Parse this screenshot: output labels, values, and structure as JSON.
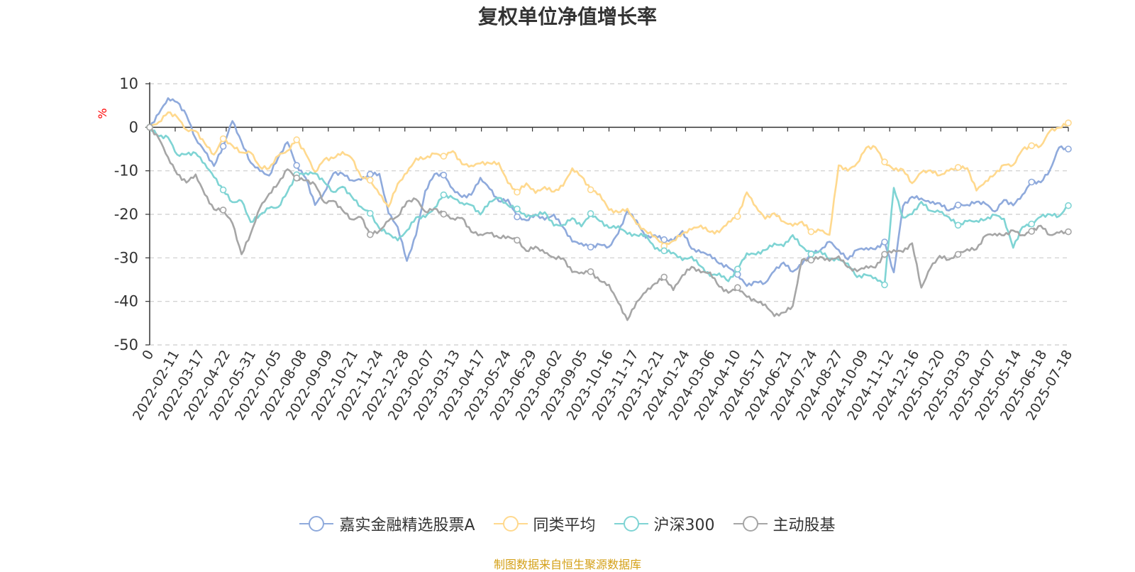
{
  "title": "复权单位净值增长率",
  "source": "制图数据来自恒生聚源数据库",
  "chart_data": {
    "type": "line",
    "ylabel": "%",
    "ylim": [
      -50,
      10
    ],
    "yticks": [
      10,
      0,
      -10,
      -20,
      -30,
      -40,
      -50
    ],
    "x_start_label": "0",
    "x_tick_labels": [
      "2022-02-11",
      "2022-03-17",
      "2022-04-22",
      "2022-05-31",
      "2022-07-05",
      "2022-08-08",
      "2022-09-09",
      "2022-10-21",
      "2022-11-24",
      "2022-12-28",
      "2023-02-07",
      "2023-03-13",
      "2023-04-17",
      "2023-05-24",
      "2023-06-29",
      "2023-08-02",
      "2023-09-05",
      "2023-10-16",
      "2023-11-17",
      "2023-12-21",
      "2024-01-24",
      "2024-03-06",
      "2024-04-10",
      "2024-05-17",
      "2024-06-21",
      "2024-07-24",
      "2024-08-27",
      "2024-10-09",
      "2024-11-12",
      "2024-12-16",
      "2025-01-20",
      "2025-03-03",
      "2025-04-07",
      "2025-05-14",
      "2025-06-18",
      "2025-07-18"
    ],
    "grid": "horizontal-dashed",
    "legend_position": "bottom",
    "series": [
      {
        "name": "嘉实金融精选股票A",
        "color": "#8faadc",
        "values": [
          0,
          3,
          8,
          5,
          2,
          -2,
          -6,
          -8,
          -4,
          0,
          -3,
          -8,
          -10,
          -10,
          -8,
          -4,
          -8,
          -12,
          -17,
          -15,
          -12,
          -10,
          -12,
          -12,
          -10,
          -12,
          -20,
          -22,
          -31,
          -24,
          -15,
          -12,
          -10,
          -14,
          -16,
          -15,
          -13,
          -14,
          -16,
          -17,
          -20,
          -22,
          -21,
          -20,
          -20,
          -23,
          -26,
          -28,
          -27,
          -26,
          -28,
          -24,
          -20,
          -22,
          -24,
          -25,
          -26,
          -26,
          -25,
          -27,
          -28,
          -30,
          -31,
          -33,
          -34,
          -35,
          -36,
          -36,
          -33,
          -32,
          -32,
          -31,
          -30,
          -28,
          -27,
          -28,
          -29,
          -29,
          -28,
          -28,
          -27,
          -32,
          -18,
          -17,
          -16,
          -18,
          -17,
          -18,
          -19,
          -18,
          -17,
          -18,
          -18,
          -17,
          -19,
          -15,
          -13,
          -12,
          -9,
          -6,
          -5
        ]
      },
      {
        "name": "同类平均",
        "color": "#ffd98e",
        "values": [
          0,
          2,
          4,
          2,
          0,
          -2,
          -4,
          -5,
          -3,
          -4,
          -6,
          -7,
          -8,
          -9,
          -7,
          -5,
          -4,
          -6,
          -9,
          -8,
          -7,
          -6,
          -8,
          -10,
          -12,
          -16,
          -18,
          -14,
          -10,
          -6,
          -8,
          -6,
          -7,
          -6,
          -7,
          -9,
          -9,
          -8,
          -9,
          -12,
          -14,
          -14,
          -15,
          -14,
          -15,
          -12,
          -10,
          -12,
          -14,
          -16,
          -18,
          -19,
          -20,
          -22,
          -24,
          -25,
          -26,
          -27,
          -25,
          -23,
          -23,
          -23,
          -24,
          -23,
          -20,
          -15,
          -18,
          -20,
          -21,
          -22,
          -22,
          -22,
          -23,
          -24,
          -26,
          -8,
          -10,
          -8,
          -4,
          -6,
          -8,
          -9,
          -10,
          -12,
          -11,
          -11,
          -10,
          -10,
          -9,
          -9,
          -16,
          -12,
          -10,
          -9,
          -8,
          -6,
          -5,
          -3,
          -1,
          0,
          1
        ]
      },
      {
        "name": "沪深300",
        "color": "#7fd4d4",
        "values": [
          0,
          -2,
          -3,
          -5,
          -6,
          -7,
          -8,
          -12,
          -14,
          -16,
          -18,
          -22,
          -20,
          -19,
          -17,
          -15,
          -12,
          -10,
          -11,
          -12,
          -14,
          -15,
          -16,
          -18,
          -20,
          -22,
          -25,
          -27,
          -23,
          -21,
          -20,
          -18,
          -17,
          -16,
          -17,
          -18,
          -19,
          -18,
          -17,
          -17,
          -19,
          -20,
          -20,
          -21,
          -22,
          -22,
          -21,
          -22,
          -21,
          -22,
          -22,
          -23,
          -24,
          -25,
          -26,
          -27,
          -28,
          -29,
          -30,
          -31,
          -32,
          -33,
          -34,
          -35,
          -33,
          -30,
          -28,
          -28,
          -27,
          -27,
          -26,
          -27,
          -28,
          -29,
          -30,
          -31,
          -32,
          -33,
          -34,
          -35,
          -36,
          -15,
          -20,
          -19,
          -18,
          -19,
          -20,
          -21,
          -21,
          -22,
          -22,
          -21,
          -21,
          -20,
          -27,
          -24,
          -22,
          -21,
          -20,
          -19,
          -18
        ]
      },
      {
        "name": "主动股基",
        "color": "#a6a6a6",
        "values": [
          0,
          -4,
          -7,
          -10,
          -13,
          -10,
          -16,
          -20,
          -18,
          -22,
          -29,
          -24,
          -20,
          -15,
          -12,
          -10,
          -11,
          -13,
          -14,
          -16,
          -17,
          -19,
          -21,
          -22,
          -24,
          -23,
          -22,
          -20,
          -18,
          -17,
          -18,
          -19,
          -20,
          -21,
          -22,
          -23,
          -24,
          -25,
          -25,
          -26,
          -26,
          -27,
          -28,
          -29,
          -30,
          -31,
          -32,
          -33,
          -34,
          -35,
          -37,
          -40,
          -43,
          -41,
          -38,
          -36,
          -35,
          -36,
          -34,
          -33,
          -33,
          -34,
          -36,
          -37,
          -38,
          -39,
          -40,
          -41,
          -42,
          -43,
          -42,
          -30,
          -31,
          -29,
          -30,
          -31,
          -32,
          -33,
          -32,
          -31,
          -30,
          -29,
          -28,
          -27,
          -36,
          -32,
          -31,
          -30,
          -29,
          -28,
          -27,
          -26,
          -25,
          -24,
          -24,
          -24,
          -24,
          -24,
          -24,
          -24,
          -24
        ]
      }
    ]
  }
}
